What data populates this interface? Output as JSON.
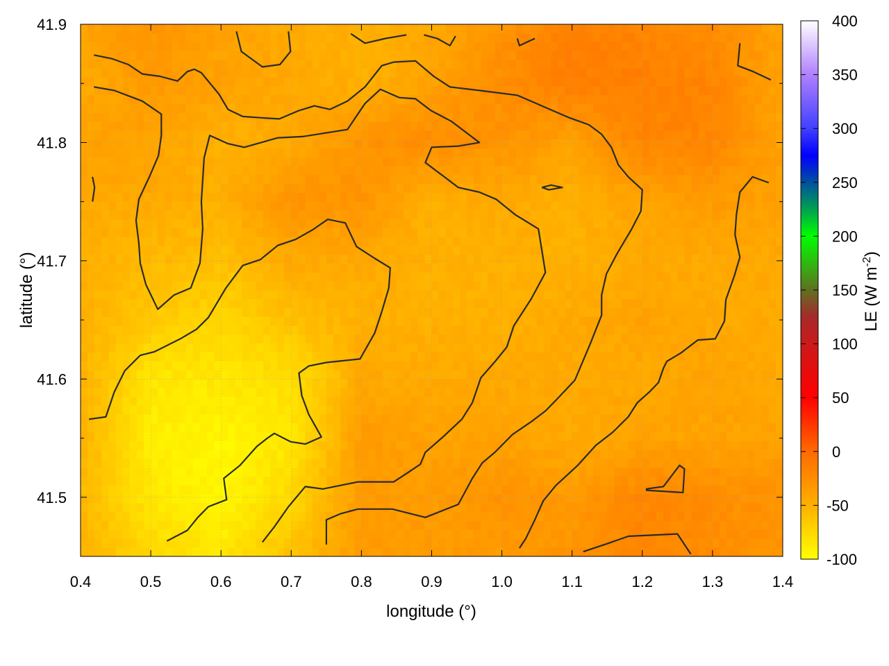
{
  "chart_data": {
    "type": "heatmap",
    "title": "",
    "xlabel": "longitude (°)",
    "ylabel": "latitude (°)",
    "xlim": [
      0.4,
      1.4
    ],
    "ylim": [
      41.45,
      41.9
    ],
    "xticks": [
      "0.4",
      "0.5",
      "0.6",
      "0.7",
      "0.8",
      "0.9",
      "1.0",
      "1.1",
      "1.2",
      "1.3",
      "1.4"
    ],
    "yticks": [
      "41.5",
      "41.6",
      "41.7",
      "41.8",
      "41.9"
    ],
    "grid": true,
    "colorbar": {
      "label": "LE (W m",
      "label_sup": "-2",
      "label_end": ")",
      "range": [
        -100,
        400
      ],
      "ticks": [
        "400",
        "350",
        "300",
        "250",
        "200",
        "150",
        "100",
        "50",
        "0",
        "-50",
        "-100"
      ],
      "stops": [
        {
          "v": -100,
          "c": "#ffff00"
        },
        {
          "v": -50,
          "c": "#ffb000"
        },
        {
          "v": 0,
          "c": "#ff6a00"
        },
        {
          "v": 50,
          "c": "#ff0000"
        },
        {
          "v": 100,
          "c": "#cc1a1a"
        },
        {
          "v": 125,
          "c": "#a52a2a"
        },
        {
          "v": 150,
          "c": "#607020"
        },
        {
          "v": 200,
          "c": "#00ff00"
        },
        {
          "v": 225,
          "c": "#00a050"
        },
        {
          "v": 250,
          "c": "#0050a0"
        },
        {
          "v": 275,
          "c": "#0000ff"
        },
        {
          "v": 300,
          "c": "#4040ff"
        },
        {
          "v": 350,
          "c": "#b080ff"
        },
        {
          "v": 400,
          "c": "#ffffff"
        }
      ]
    },
    "grid_x": [
      0.4,
      0.5,
      0.6,
      0.7,
      0.8,
      0.9,
      1.0,
      1.1,
      1.2,
      1.3,
      1.4
    ],
    "grid_y": [
      41.9,
      41.85,
      41.8,
      41.75,
      41.7,
      41.65,
      41.6,
      41.55,
      41.5,
      41.45
    ],
    "z": [
      [
        -40,
        -30,
        -40,
        -45,
        -50,
        -45,
        -30,
        -15,
        -20,
        -25,
        -40
      ],
      [
        -45,
        -35,
        -40,
        -45,
        -50,
        -40,
        -25,
        -15,
        -15,
        -20,
        -40
      ],
      [
        -40,
        -40,
        -50,
        -45,
        -30,
        -25,
        -30,
        -40,
        -20,
        -20,
        -40
      ],
      [
        -45,
        -45,
        -50,
        -30,
        -30,
        -50,
        -45,
        -50,
        -40,
        -35,
        -40
      ],
      [
        -50,
        -55,
        -60,
        -45,
        -45,
        -50,
        -50,
        -50,
        -45,
        -45,
        -45
      ],
      [
        -50,
        -65,
        -75,
        -60,
        -50,
        -50,
        -50,
        -45,
        -40,
        -45,
        -45
      ],
      [
        -50,
        -85,
        -85,
        -80,
        -45,
        -45,
        -45,
        -45,
        -45,
        -40,
        -45
      ],
      [
        -50,
        -90,
        -95,
        -85,
        -35,
        -40,
        -40,
        -45,
        -40,
        -40,
        -40
      ],
      [
        -55,
        -85,
        -95,
        -75,
        -35,
        -35,
        -30,
        -35,
        -20,
        -25,
        -30
      ],
      [
        -50,
        -75,
        -85,
        -60,
        -35,
        -35,
        -35,
        -30,
        -20,
        -25,
        -30
      ]
    ],
    "contour_color": "#2a2a2a",
    "contours": [
      [
        [
          0.412,
          41.566
        ],
        [
          0.436,
          41.568
        ],
        [
          0.448,
          41.589
        ],
        [
          0.463,
          41.607
        ],
        [
          0.485,
          41.62
        ],
        [
          0.505,
          41.623
        ],
        [
          0.542,
          41.634
        ],
        [
          0.565,
          41.642
        ],
        [
          0.582,
          41.652
        ],
        [
          0.607,
          41.677
        ],
        [
          0.631,
          41.696
        ],
        [
          0.656,
          41.701
        ],
        [
          0.681,
          41.713
        ],
        [
          0.706,
          41.718
        ],
        [
          0.73,
          41.726
        ],
        [
          0.752,
          41.735
        ],
        [
          0.777,
          41.732
        ],
        [
          0.793,
          41.712
        ],
        [
          0.819,
          41.702
        ],
        [
          0.841,
          41.694
        ],
        [
          0.839,
          41.677
        ],
        [
          0.829,
          41.657
        ],
        [
          0.819,
          41.639
        ],
        [
          0.798,
          41.617
        ],
        [
          0.75,
          41.614
        ],
        [
          0.725,
          41.611
        ],
        [
          0.711,
          41.605
        ],
        [
          0.715,
          41.586
        ],
        [
          0.725,
          41.57
        ],
        [
          0.743,
          41.551
        ],
        [
          0.72,
          41.545
        ],
        [
          0.699,
          41.547
        ],
        [
          0.676,
          41.554
        ],
        [
          0.666,
          41.55
        ],
        [
          0.651,
          41.543
        ],
        [
          0.627,
          41.527
        ],
        [
          0.604,
          41.516
        ],
        [
          0.608,
          41.498
        ],
        [
          0.582,
          41.492
        ],
        [
          0.567,
          41.483
        ],
        [
          0.552,
          41.472
        ],
        [
          0.523,
          41.463
        ]
      ],
      [
        [
          0.419,
          41.847
        ],
        [
          0.448,
          41.844
        ],
        [
          0.488,
          41.835
        ],
        [
          0.515,
          41.824
        ],
        [
          0.515,
          41.806
        ],
        [
          0.511,
          41.789
        ],
        [
          0.498,
          41.771
        ],
        [
          0.483,
          41.752
        ],
        [
          0.479,
          41.734
        ],
        [
          0.483,
          41.715
        ],
        [
          0.485,
          41.698
        ],
        [
          0.493,
          41.68
        ],
        [
          0.51,
          41.659
        ],
        [
          0.533,
          41.671
        ],
        [
          0.557,
          41.677
        ],
        [
          0.57,
          41.698
        ],
        [
          0.574,
          41.727
        ],
        [
          0.572,
          41.75
        ],
        [
          0.576,
          41.787
        ],
        [
          0.584,
          41.806
        ],
        [
          0.61,
          41.799
        ],
        [
          0.633,
          41.796
        ],
        [
          0.681,
          41.804
        ],
        [
          0.716,
          41.805
        ],
        [
          0.78,
          41.811
        ],
        [
          0.805,
          41.833
        ],
        [
          0.827,
          41.845
        ],
        [
          0.854,
          41.838
        ],
        [
          0.877,
          41.837
        ],
        [
          0.899,
          41.827
        ],
        [
          0.928,
          41.818
        ],
        [
          0.948,
          41.809
        ],
        [
          0.968,
          41.8
        ],
        [
          0.938,
          41.797
        ],
        [
          0.9,
          41.796
        ],
        [
          0.891,
          41.783
        ],
        [
          0.918,
          41.771
        ],
        [
          0.938,
          41.762
        ],
        [
          0.968,
          41.758
        ],
        [
          0.992,
          41.752
        ],
        [
          1.019,
          41.739
        ],
        [
          1.052,
          41.727
        ],
        [
          1.062,
          41.69
        ],
        [
          1.042,
          41.668
        ],
        [
          1.017,
          41.645
        ],
        [
          1.007,
          41.627
        ],
        [
          0.992,
          41.616
        ],
        [
          0.97,
          41.601
        ],
        [
          0.958,
          41.58
        ],
        [
          0.943,
          41.566
        ],
        [
          0.916,
          41.551
        ],
        [
          0.891,
          41.538
        ],
        [
          0.884,
          41.528
        ],
        [
          0.869,
          41.522
        ],
        [
          0.846,
          41.513
        ],
        [
          0.795,
          41.513
        ],
        [
          0.77,
          41.51
        ],
        [
          0.745,
          41.507
        ],
        [
          0.72,
          41.509
        ],
        [
          0.696,
          41.492
        ],
        [
          0.676,
          41.475
        ],
        [
          0.659,
          41.462
        ]
      ],
      [
        [
          0.419,
          41.874
        ],
        [
          0.444,
          41.871
        ],
        [
          0.468,
          41.866
        ],
        [
          0.488,
          41.858
        ],
        [
          0.513,
          41.856
        ],
        [
          0.538,
          41.852
        ],
        [
          0.552,
          41.86
        ],
        [
          0.562,
          41.862
        ],
        [
          0.572,
          41.859
        ],
        [
          0.597,
          41.841
        ],
        [
          0.61,
          41.828
        ],
        [
          0.631,
          41.822
        ],
        [
          0.656,
          41.821
        ],
        [
          0.683,
          41.82
        ],
        [
          0.711,
          41.827
        ],
        [
          0.733,
          41.831
        ],
        [
          0.755,
          41.828
        ],
        [
          0.78,
          41.835
        ],
        [
          0.805,
          41.847
        ],
        [
          0.829,
          41.865
        ],
        [
          0.846,
          41.868
        ],
        [
          0.877,
          41.869
        ],
        [
          0.903,
          41.856
        ],
        [
          0.926,
          41.847
        ],
        [
          0.968,
          41.844
        ],
        [
          1.022,
          41.84
        ],
        [
          1.057,
          41.831
        ],
        [
          1.096,
          41.821
        ],
        [
          1.124,
          41.815
        ],
        [
          1.142,
          41.807
        ],
        [
          1.156,
          41.796
        ],
        [
          1.166,
          41.781
        ],
        [
          1.18,
          41.771
        ],
        [
          1.2,
          41.76
        ],
        [
          1.198,
          41.742
        ],
        [
          1.185,
          41.727
        ],
        [
          1.164,
          41.706
        ],
        [
          1.149,
          41.689
        ],
        [
          1.142,
          41.671
        ],
        [
          1.142,
          41.654
        ],
        [
          1.126,
          41.63
        ],
        [
          1.104,
          41.599
        ],
        [
          1.077,
          41.582
        ],
        [
          1.062,
          41.573
        ],
        [
          1.042,
          41.564
        ],
        [
          1.015,
          41.553
        ],
        [
          0.99,
          41.538
        ],
        [
          0.972,
          41.529
        ],
        [
          0.958,
          41.516
        ],
        [
          0.938,
          41.494
        ],
        [
          0.891,
          41.483
        ],
        [
          0.844,
          41.49
        ],
        [
          0.795,
          41.49
        ],
        [
          0.77,
          41.486
        ],
        [
          0.75,
          41.481
        ],
        [
          0.75,
          41.46
        ]
      ],
      [
        [
          1.38,
          41.766
        ],
        [
          1.357,
          41.771
        ],
        [
          1.339,
          41.758
        ],
        [
          1.334,
          41.739
        ],
        [
          1.332,
          41.722
        ],
        [
          1.339,
          41.703
        ],
        [
          1.331,
          41.687
        ],
        [
          1.319,
          41.667
        ],
        [
          1.317,
          41.649
        ],
        [
          1.304,
          41.634
        ],
        [
          1.279,
          41.633
        ],
        [
          1.255,
          41.622
        ],
        [
          1.235,
          41.615
        ],
        [
          1.23,
          41.609
        ],
        [
          1.223,
          41.597
        ],
        [
          1.21,
          41.589
        ],
        [
          1.193,
          41.58
        ],
        [
          1.18,
          41.568
        ],
        [
          1.158,
          41.555
        ],
        [
          1.134,
          41.544
        ],
        [
          1.108,
          41.527
        ],
        [
          1.077,
          41.51
        ],
        [
          1.059,
          41.497
        ],
        [
          1.047,
          41.481
        ],
        [
          1.034,
          41.465
        ],
        [
          1.025,
          41.457
        ]
      ],
      [
        [
          1.339,
          41.884
        ],
        [
          1.336,
          41.865
        ],
        [
          1.358,
          41.86
        ],
        [
          1.383,
          41.853
        ]
      ],
      [
        [
          1.116,
          41.454
        ],
        [
          1.151,
          41.461
        ],
        [
          1.18,
          41.467
        ],
        [
          1.25,
          41.469
        ],
        [
          1.269,
          41.452
        ]
      ],
      [
        [
          1.205,
          41.507
        ],
        [
          1.23,
          41.509
        ],
        [
          1.253,
          41.527
        ],
        [
          1.26,
          41.524
        ],
        [
          1.258,
          41.504
        ],
        [
          1.205,
          41.506
        ]
      ],
      [
        [
          0.622,
          41.894
        ],
        [
          0.629,
          41.877
        ],
        [
          0.659,
          41.864
        ],
        [
          0.684,
          41.866
        ],
        [
          0.699,
          41.877
        ],
        [
          0.696,
          41.894
        ]
      ],
      [
        [
          0.785,
          41.892
        ],
        [
          0.805,
          41.884
        ],
        [
          0.834,
          41.888
        ],
        [
          0.864,
          41.891
        ]
      ],
      [
        [
          0.889,
          41.891
        ],
        [
          0.908,
          41.888
        ],
        [
          0.926,
          41.882
        ],
        [
          0.934,
          41.89
        ]
      ],
      [
        [
          1.022,
          41.888
        ],
        [
          1.025,
          41.882
        ],
        [
          1.047,
          41.888
        ]
      ],
      [
        [
          1.057,
          41.762
        ],
        [
          1.07,
          41.764
        ],
        [
          1.086,
          41.762
        ],
        [
          1.067,
          41.76
        ],
        [
          1.057,
          41.762
        ]
      ],
      [
        [
          0.417,
          41.771
        ],
        [
          0.42,
          41.762
        ],
        [
          0.417,
          41.75
        ]
      ]
    ]
  }
}
